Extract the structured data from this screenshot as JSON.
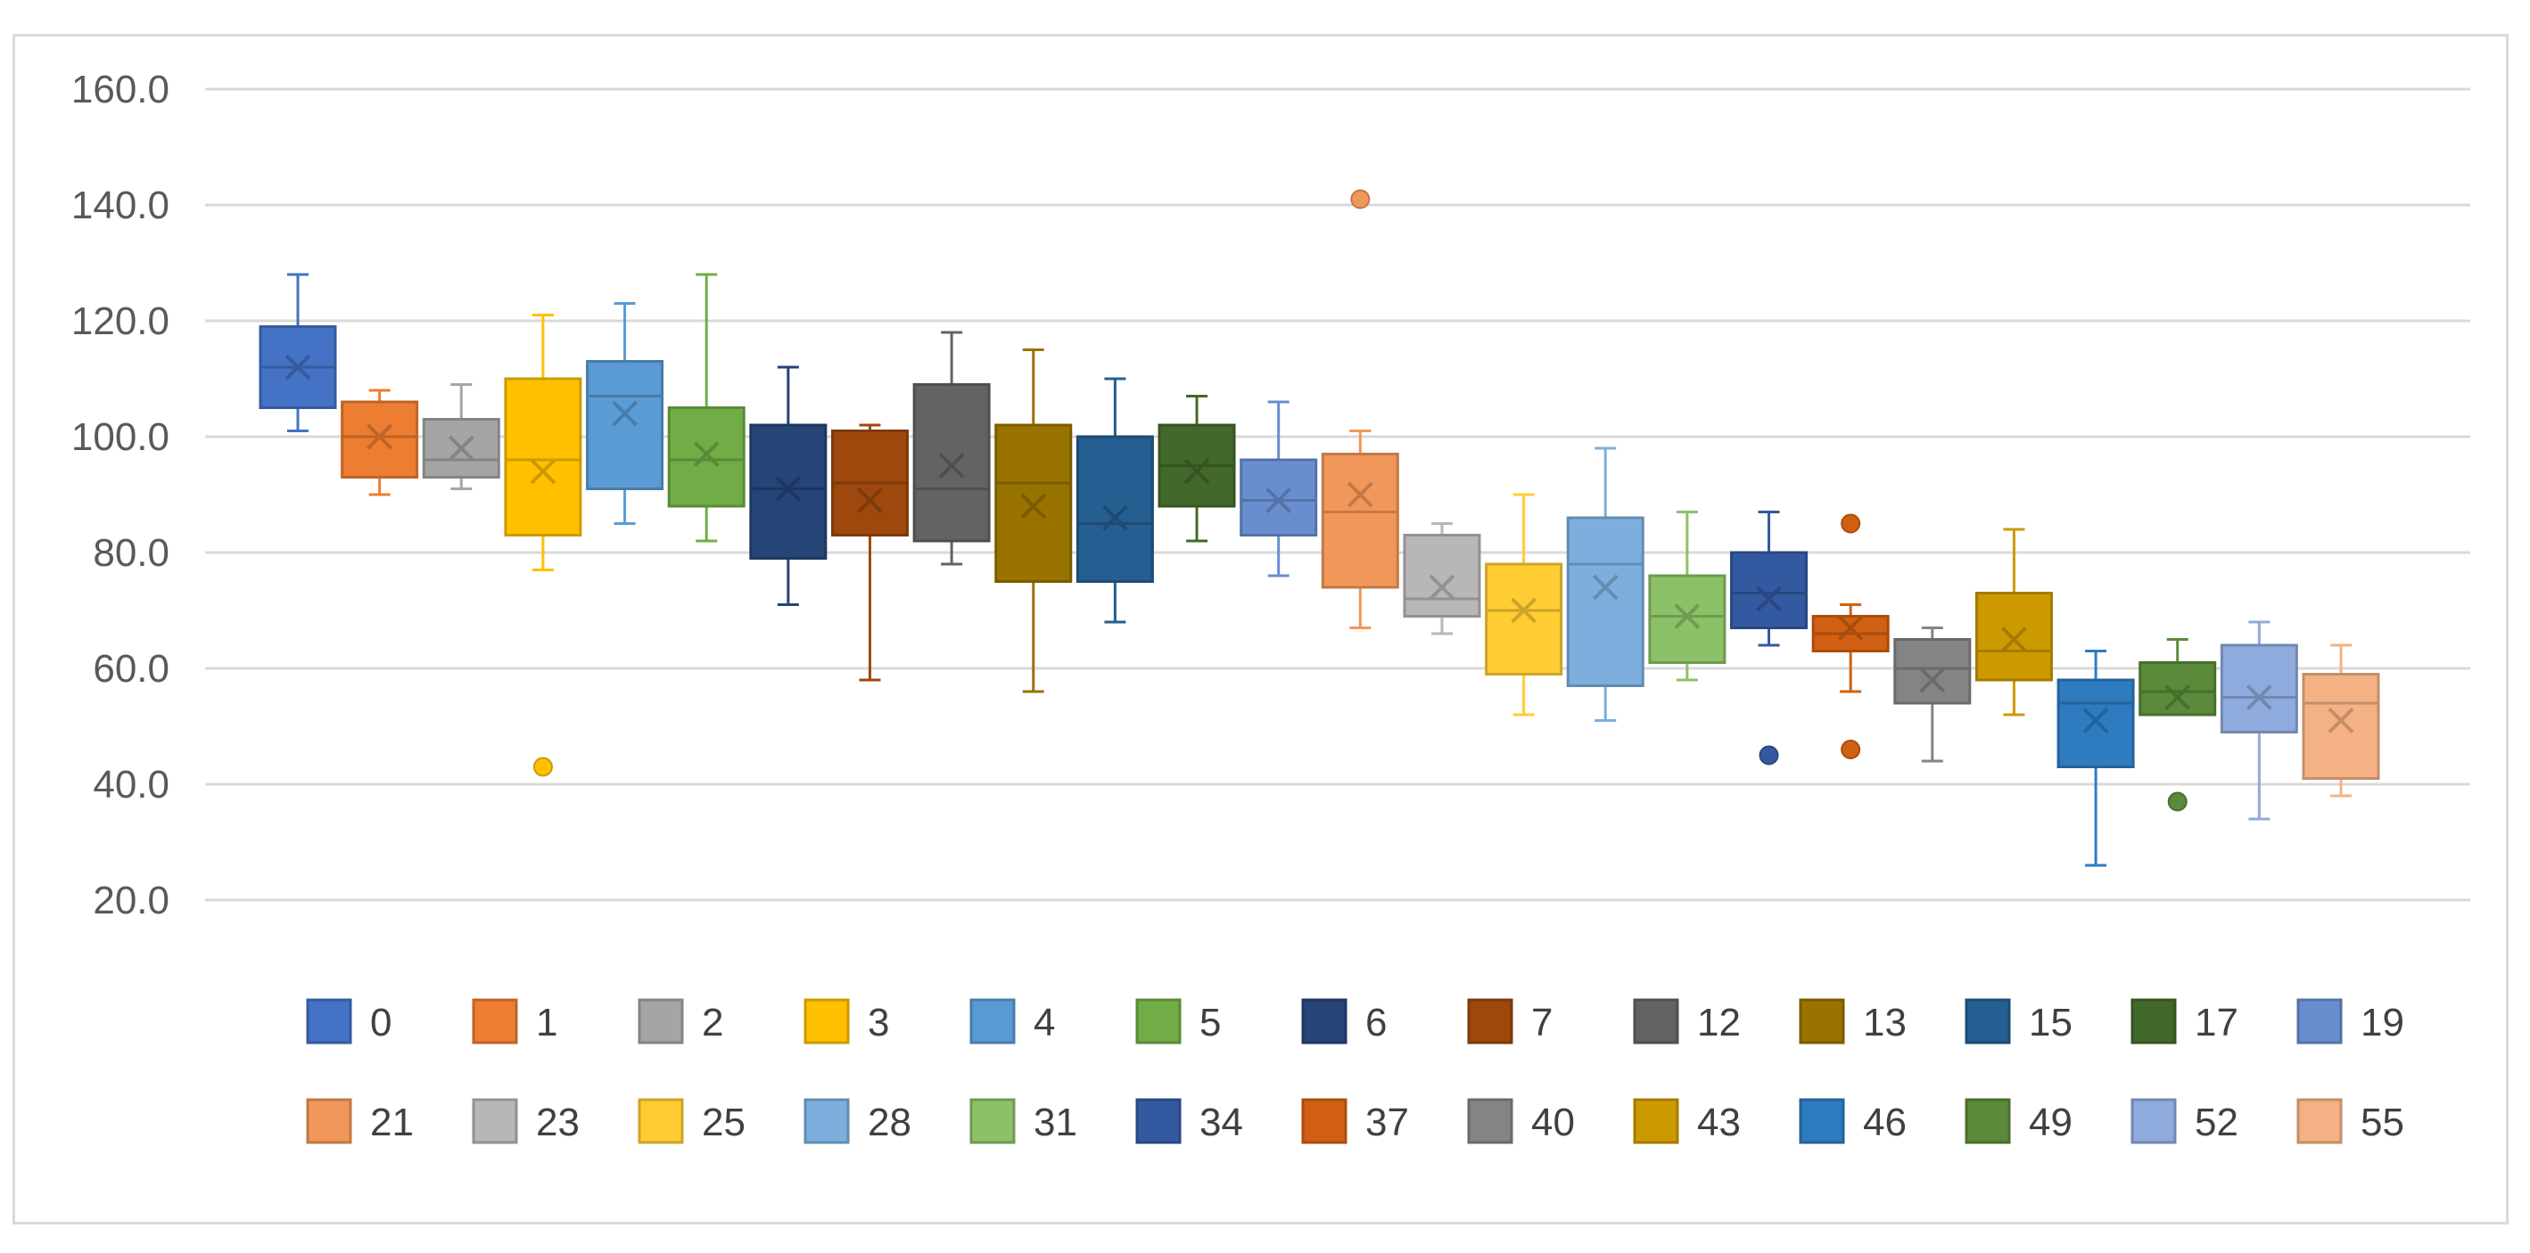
{
  "chart_data": {
    "type": "boxplot",
    "title": "",
    "xlabel": "",
    "ylabel": "",
    "ylim": [
      20,
      160
    ],
    "y_ticks": [
      "160.0",
      "140.0",
      "120.0",
      "100.0",
      "80.0",
      "60.0",
      "40.0",
      "20.0"
    ],
    "y_tick_values": [
      160,
      140,
      120,
      100,
      80,
      60,
      40,
      20
    ],
    "grid": true,
    "legend_position": "bottom",
    "series": [
      {
        "name": "0",
        "color": "#4472C4",
        "min": 101,
        "q1": 105,
        "median": 112,
        "q3": 119,
        "max": 128,
        "mean": 112,
        "outliers": []
      },
      {
        "name": "1",
        "color": "#ED7D31",
        "min": 90,
        "q1": 93,
        "median": 100,
        "q3": 106,
        "max": 108,
        "mean": 100,
        "outliers": []
      },
      {
        "name": "2",
        "color": "#A5A5A5",
        "min": 91,
        "q1": 93,
        "median": 96,
        "q3": 103,
        "max": 109,
        "mean": 98,
        "outliers": []
      },
      {
        "name": "3",
        "color": "#FFC000",
        "min": 77,
        "q1": 83,
        "median": 96,
        "q3": 110,
        "max": 121,
        "mean": 94,
        "outliers": [
          43
        ]
      },
      {
        "name": "4",
        "color": "#5B9BD5",
        "min": 85,
        "q1": 91,
        "median": 107,
        "q3": 113,
        "max": 123,
        "mean": 104,
        "outliers": []
      },
      {
        "name": "5",
        "color": "#70AD47",
        "min": 82,
        "q1": 88,
        "median": 96,
        "q3": 105,
        "max": 128,
        "mean": 97,
        "outliers": []
      },
      {
        "name": "6",
        "color": "#264478",
        "min": 71,
        "q1": 79,
        "median": 91,
        "q3": 102,
        "max": 112,
        "mean": 91,
        "outliers": []
      },
      {
        "name": "7",
        "color": "#9E480E",
        "min": 58,
        "q1": 83,
        "median": 92,
        "q3": 101,
        "max": 102,
        "mean": 89,
        "outliers": []
      },
      {
        "name": "12",
        "color": "#636363",
        "min": 78,
        "q1": 82,
        "median": 91,
        "q3": 109,
        "max": 118,
        "mean": 95,
        "outliers": []
      },
      {
        "name": "13",
        "color": "#997300",
        "min": 56,
        "q1": 75,
        "median": 92,
        "q3": 102,
        "max": 115,
        "mean": 88,
        "outliers": []
      },
      {
        "name": "15",
        "color": "#255E91",
        "min": 68,
        "q1": 75,
        "median": 85,
        "q3": 100,
        "max": 110,
        "mean": 86,
        "outliers": []
      },
      {
        "name": "17",
        "color": "#43682B",
        "min": 82,
        "q1": 88,
        "median": 95,
        "q3": 102,
        "max": 107,
        "mean": 94,
        "outliers": []
      },
      {
        "name": "19",
        "color": "#698ED0",
        "min": 76,
        "q1": 83,
        "median": 89,
        "q3": 96,
        "max": 106,
        "mean": 89,
        "outliers": []
      },
      {
        "name": "21",
        "color": "#F1975A",
        "min": 67,
        "q1": 74,
        "median": 87,
        "q3": 97,
        "max": 101,
        "mean": 90,
        "outliers": [
          141
        ]
      },
      {
        "name": "23",
        "color": "#B7B7B7",
        "min": 66,
        "q1": 69,
        "median": 72,
        "q3": 83,
        "max": 85,
        "mean": 74,
        "outliers": []
      },
      {
        "name": "25",
        "color": "#FFCD33",
        "min": 52,
        "q1": 59,
        "median": 70,
        "q3": 78,
        "max": 90,
        "mean": 70,
        "outliers": []
      },
      {
        "name": "28",
        "color": "#7CAFDD",
        "min": 51,
        "q1": 57,
        "median": 78,
        "q3": 86,
        "max": 98,
        "mean": 74,
        "outliers": []
      },
      {
        "name": "31",
        "color": "#8CC168",
        "min": 58,
        "q1": 61,
        "median": 69,
        "q3": 76,
        "max": 87,
        "mean": 69,
        "outliers": []
      },
      {
        "name": "34",
        "color": "#335AA1",
        "min": 64,
        "q1": 67,
        "median": 73,
        "q3": 80,
        "max": 87,
        "mean": 72,
        "outliers": [
          45
        ]
      },
      {
        "name": "37",
        "color": "#D26012",
        "min": 56,
        "q1": 63,
        "median": 66,
        "q3": 69,
        "max": 71,
        "mean": 67,
        "outliers": [
          85,
          46
        ]
      },
      {
        "name": "40",
        "color": "#848484",
        "min": 44,
        "q1": 54,
        "median": 60,
        "q3": 65,
        "max": 67,
        "mean": 58,
        "outliers": []
      },
      {
        "name": "43",
        "color": "#CC9A00",
        "min": 52,
        "q1": 58,
        "median": 63,
        "q3": 73,
        "max": 84,
        "mean": 65,
        "outliers": []
      },
      {
        "name": "46",
        "color": "#2E7BC0",
        "min": 26,
        "q1": 43,
        "median": 54,
        "q3": 58,
        "max": 63,
        "mean": 51,
        "outliers": []
      },
      {
        "name": "49",
        "color": "#5A8A3A",
        "min": 52,
        "q1": 52,
        "median": 56,
        "q3": 61,
        "max": 65,
        "mean": 55,
        "outliers": [
          37
        ]
      },
      {
        "name": "52",
        "color": "#8FAADC",
        "min": 34,
        "q1": 49,
        "median": 55,
        "q3": 64,
        "max": 68,
        "mean": 55,
        "outliers": []
      },
      {
        "name": "55",
        "color": "#F4B183",
        "min": 38,
        "q1": 41,
        "median": 54,
        "q3": 59,
        "max": 64,
        "mean": 51,
        "outliers": []
      }
    ]
  }
}
